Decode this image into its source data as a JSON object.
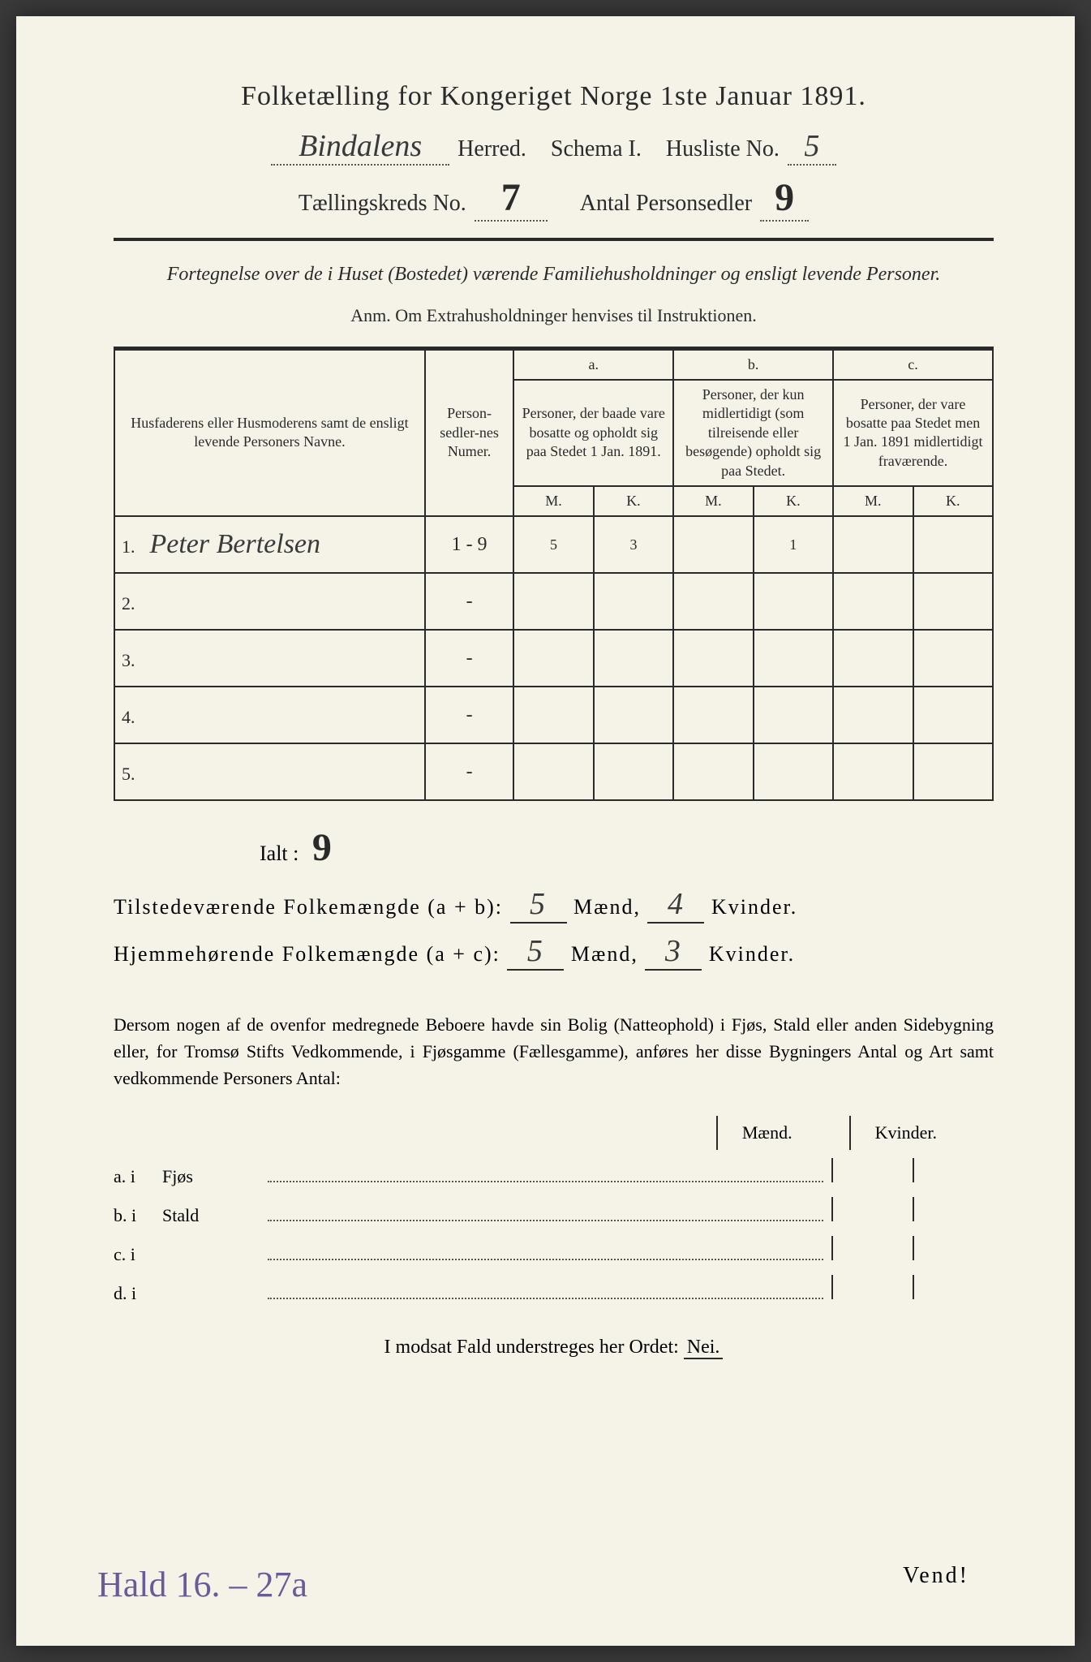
{
  "title": "Folketælling for Kongeriget Norge 1ste Januar 1891.",
  "header": {
    "herred_value": "Bindalens",
    "herred_label": "Herred.",
    "schema_label": "Schema I.",
    "husliste_label": "Husliste No.",
    "husliste_value": "5",
    "kreds_label": "Tællingskreds No.",
    "kreds_value": "7",
    "antal_label": "Antal Personsedler",
    "antal_value": "9"
  },
  "subtitle": "Fortegnelse over de i Huset (Bostedet) værende Familiehusholdninger og ensligt levende Personer.",
  "anm": "Anm.  Om Extrahusholdninger henvises til Instruktionen.",
  "table": {
    "col_name": "Husfaderens eller Husmoderens samt de ensligt levende Personers Navne.",
    "col_num": "Person-sedler-nes Numer.",
    "col_a_label": "a.",
    "col_a": "Personer, der baade vare bosatte og opholdt sig paa Stedet 1 Jan. 1891.",
    "col_b_label": "b.",
    "col_b": "Personer, der kun midlertidigt (som tilreisende eller besøgende) opholdt sig paa Stedet.",
    "col_c_label": "c.",
    "col_c": "Personer, der vare bosatte paa Stedet men 1 Jan. 1891 midlertidigt fraværende.",
    "m": "M.",
    "k": "K.",
    "rows": [
      {
        "n": "1.",
        "name": "Peter Bertelsen",
        "num": "1 - 9",
        "am": "5",
        "ak": "3",
        "bm": "",
        "bk": "1",
        "cm": "",
        "ck": ""
      },
      {
        "n": "2.",
        "name": "",
        "num": "-",
        "am": "",
        "ak": "",
        "bm": "",
        "bk": "",
        "cm": "",
        "ck": ""
      },
      {
        "n": "3.",
        "name": "",
        "num": "-",
        "am": "",
        "ak": "",
        "bm": "",
        "bk": "",
        "cm": "",
        "ck": ""
      },
      {
        "n": "4.",
        "name": "",
        "num": "-",
        "am": "",
        "ak": "",
        "bm": "",
        "bk": "",
        "cm": "",
        "ck": ""
      },
      {
        "n": "5.",
        "name": "",
        "num": "-",
        "am": "",
        "ak": "",
        "bm": "",
        "bk": "",
        "cm": "",
        "ck": ""
      }
    ]
  },
  "ialt_label": "Ialt :",
  "ialt_value": "9",
  "summary": {
    "line1_label": "Tilstedeværende Folkemængde (a + b):",
    "line1_m": "5",
    "line1_k": "4",
    "line2_label": "Hjemmehørende Folkemængde (a + c):",
    "line2_m": "5",
    "line2_k": "3",
    "maend": "Mænd,",
    "kvinder": "Kvinder."
  },
  "para": "Dersom nogen af de ovenfor medregnede Beboere havde sin Bolig (Natteophold) i Fjøs, Stald eller anden Sidebygning eller, for Tromsø Stifts Vedkommende, i Fjøsgamme (Fællesgamme), anføres her disse Bygningers Antal og Art samt vedkommende Personers Antal:",
  "mk": {
    "m": "Mænd.",
    "k": "Kvinder."
  },
  "buildings": [
    {
      "l": "a.  i",
      "n": "Fjøs"
    },
    {
      "l": "b.  i",
      "n": "Stald"
    },
    {
      "l": "c.  i",
      "n": ""
    },
    {
      "l": "d.  i",
      "n": ""
    }
  ],
  "modsat": "I modsat Fald understreges her Ordet:",
  "nei": "Nei.",
  "footer_hand": "Hald 16. – 27a",
  "vend": "Vend!"
}
